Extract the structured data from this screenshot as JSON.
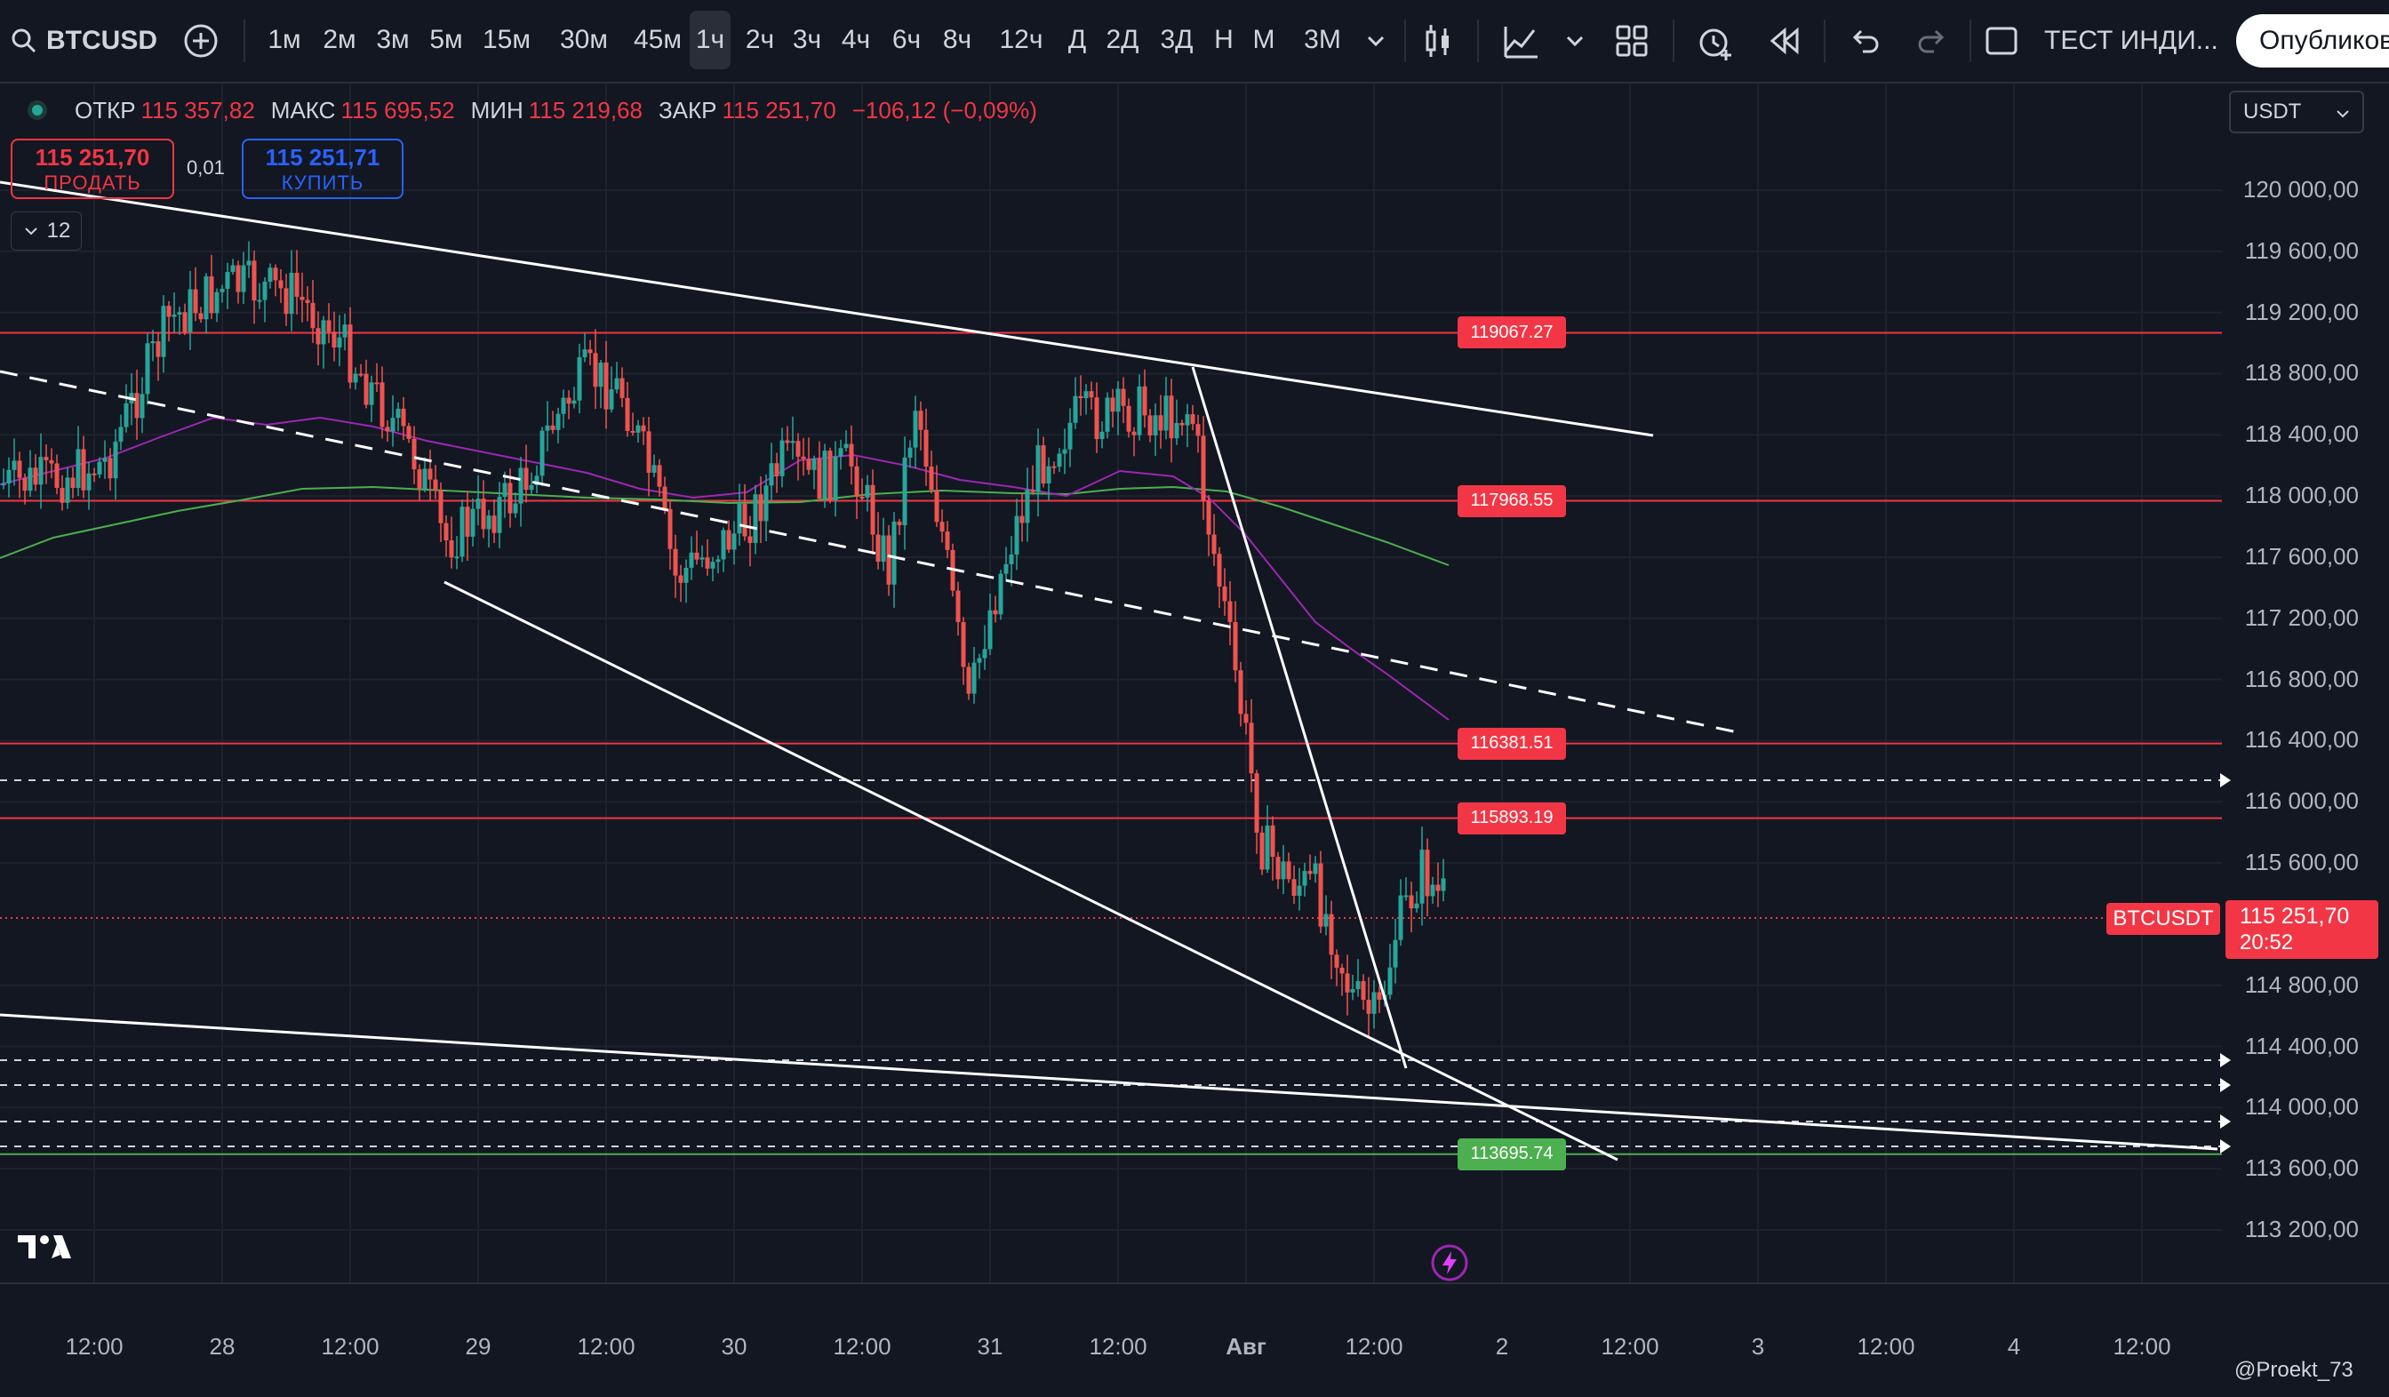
{
  "toolbar": {
    "symbol": "BTCUSD",
    "timeframes": [
      "1м",
      "2м",
      "3м",
      "5м",
      "15м",
      "30м",
      "45м",
      "1ч",
      "2ч",
      "3ч",
      "4ч",
      "6ч",
      "8ч",
      "12ч",
      "Д",
      "2Д",
      "3Д",
      "Н",
      "М",
      "3М"
    ],
    "active_timeframe": "1ч",
    "indicator_label": "ТЕСТ ИНДИ...",
    "publish_label": "Опубликов"
  },
  "legend": {
    "open_label": "ОТКР",
    "open": "115 357,82",
    "high_label": "МАКС",
    "high": "115 695,52",
    "low_label": "МИН",
    "low": "115 219,68",
    "close_label": "ЗАКР",
    "close": "115 251,70",
    "change": "−106,12 (−0,09%)"
  },
  "trade": {
    "sell_price": "115 251,70",
    "sell_label": "ПРОДАТЬ",
    "buy_price": "115 251,71",
    "buy_label": "КУПИТЬ",
    "spread": "0,01",
    "indicator_count": "12"
  },
  "currency": "USDT",
  "y_axis": {
    "labels": [
      "120 000,00",
      "119 600,00",
      "119 200,00",
      "118 800,00",
      "118 400,00",
      "118 000,00",
      "117 600,00",
      "117 200,00",
      "116 800,00",
      "116 400,00",
      "116 000,00",
      "115 600,00",
      "114 800,00",
      "114 400,00",
      "114 000,00",
      "113 600,00",
      "113 200,00"
    ]
  },
  "x_axis": {
    "labels": [
      "12:00",
      "28",
      "12:00",
      "29",
      "12:00",
      "30",
      "12:00",
      "31",
      "12:00",
      "Авг",
      "12:00",
      "2",
      "12:00",
      "3",
      "12:00",
      "4",
      "12:00"
    ]
  },
  "levels": [
    {
      "label": "119067.27",
      "color": "#f23645"
    },
    {
      "label": "117968.55",
      "color": "#f23645"
    },
    {
      "label": "116381.51",
      "color": "#f23645"
    },
    {
      "label": "115893.19",
      "color": "#f23645"
    },
    {
      "label": "113695.74",
      "color": "#4caf50"
    }
  ],
  "price_tag": {
    "value": "115 251,70",
    "countdown": "20:52",
    "symbol": "BTCUSDT"
  },
  "watermark": "@Proekt_73",
  "colors": {
    "background": "#131722",
    "up": "#26a69a",
    "down": "#ef5350",
    "level_line": "#f23645",
    "support_line": "#4caf50",
    "trendline": "#ffffff"
  }
}
